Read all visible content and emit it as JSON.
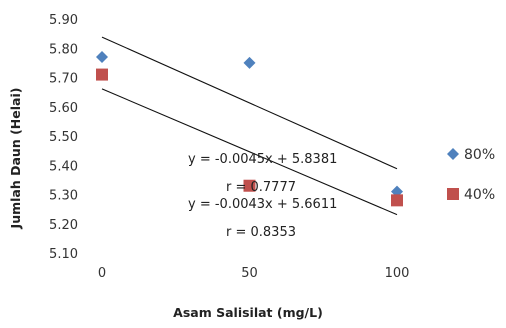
{
  "chart_data": {
    "type": "scatter",
    "xlabel": "Asam Salisilat (mg/L)",
    "ylabel": "Jumlah Daun (Helai)",
    "xlim": [
      0,
      100
    ],
    "ylim": [
      5.1,
      5.9
    ],
    "x_ticks": [
      "0",
      "50",
      "100"
    ],
    "y_ticks": [
      "5.10",
      "5.20",
      "5.30",
      "5.40",
      "5.50",
      "5.60",
      "5.70",
      "5.80",
      "5.90"
    ],
    "grid": false,
    "legend_position": "right",
    "series": [
      {
        "name": "80%",
        "color": "#4f81bd",
        "marker": "diamond",
        "x": [
          0,
          50,
          100
        ],
        "y": [
          5.77,
          5.75,
          5.31
        ],
        "trendline": {
          "slope": -0.0045,
          "intercept": 5.8381
        },
        "equation": "y = -0.0045x + 5.8381",
        "r_text": "r = 0.7777"
      },
      {
        "name": "40%",
        "color": "#c0504d",
        "marker": "square",
        "x": [
          0,
          50,
          100
        ],
        "y": [
          5.71,
          5.33,
          5.28
        ],
        "trendline": {
          "slope": -0.0043,
          "intercept": 5.6611
        },
        "equation": "y = -0.0043x + 5.6611",
        "r_text": "r = 0.8353"
      }
    ]
  }
}
